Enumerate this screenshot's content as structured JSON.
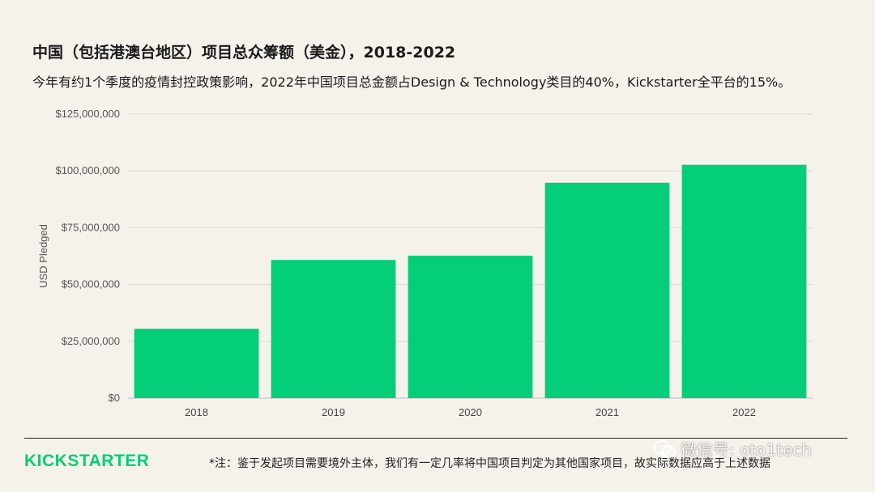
{
  "title": "中国（包括港澳台地区）项目总众筹额（美金），2018-2022",
  "subtitle": "今年有约1个季度的疫情封控政策影响，2022年中国项目总金额占Design & Technology类目的40%，Kickstarter全平台的15%。",
  "chart_data": {
    "type": "bar",
    "categories": [
      "2018",
      "2019",
      "2020",
      "2021",
      "2022"
    ],
    "values": [
      30500000,
      60800000,
      62700000,
      94800000,
      102700000
    ],
    "xlabel": "",
    "ylabel": "USD Pledged",
    "ylim": [
      0,
      125000000
    ],
    "yticks": [
      0,
      25000000,
      50000000,
      75000000,
      100000000,
      125000000
    ],
    "ytick_labels": [
      "$0",
      "$25,000,000",
      "$50,000,000",
      "$75,000,000",
      "$100,000,000",
      "$125,000,000"
    ],
    "grid": true,
    "bar_color": "#05ce78"
  },
  "footer": {
    "logo": "KICKSTARTER",
    "note": "*注：鉴于发起项目需要境外主体，我们有一定几率将中国项目判定为其他国家项目，故实际数据应高于上述数据"
  },
  "watermark": {
    "text": "微信号: oto1tech",
    "icon": "wechat-icon"
  },
  "colors": {
    "accent": "#05ce78",
    "background": "#f5f2ec"
  }
}
